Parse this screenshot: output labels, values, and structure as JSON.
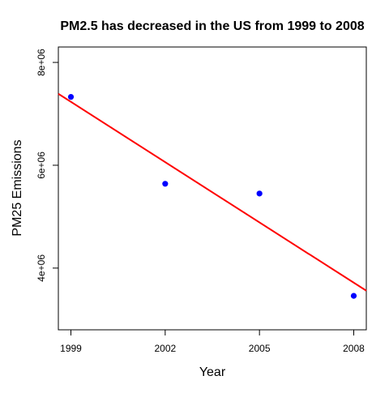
{
  "chart_data": {
    "type": "scatter",
    "title": "PM2.5  has decreased in the US from 1999 to 2008",
    "xlabel": "Year",
    "ylabel": "PM25 Emissions",
    "x_ticks": [
      1999,
      2002,
      2005,
      2008
    ],
    "x_tick_labels": [
      "1999",
      "2002",
      "2005",
      "2008"
    ],
    "y_ticks": [
      4000000,
      6000000,
      8000000
    ],
    "y_tick_labels": [
      "4e+06",
      "6e+06",
      "8e+06"
    ],
    "xlim": [
      1998.6,
      2008.4
    ],
    "ylim": [
      2800000,
      8300000
    ],
    "grid": false,
    "series": [
      {
        "x": [
          1999,
          2002,
          2005,
          2008
        ],
        "y": [
          7330000,
          5640000,
          5450000,
          3460000
        ],
        "marker": "filled-circle",
        "color": "#0000ff"
      }
    ],
    "trend_line": {
      "color": "#ff0000",
      "from": {
        "x": 1998.6,
        "y": 7390000
      },
      "to": {
        "x": 2008.4,
        "y": 3560000
      }
    }
  }
}
